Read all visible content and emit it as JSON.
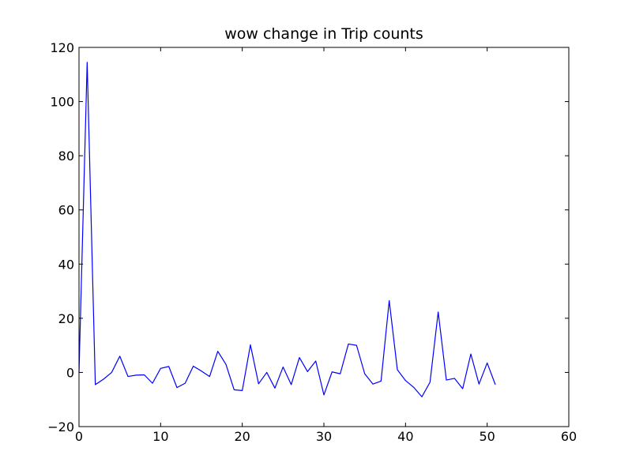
{
  "chart_data": {
    "type": "line",
    "title": "wow change in Trip counts",
    "xlabel": "",
    "ylabel": "",
    "xlim": [
      0,
      60
    ],
    "ylim": [
      -20,
      120
    ],
    "xticks": [
      0,
      10,
      20,
      30,
      40,
      50,
      60
    ],
    "yticks": [
      -20,
      0,
      20,
      40,
      60,
      80,
      100,
      120
    ],
    "grid": false,
    "series": [
      {
        "color": "#0000ff",
        "x": [
          0,
          1,
          2,
          3,
          4,
          5,
          6,
          7,
          8,
          9,
          10,
          11,
          12,
          13,
          14,
          15,
          16,
          17,
          18,
          19,
          20,
          21,
          22,
          23,
          24,
          25,
          26,
          27,
          28,
          29,
          30,
          31,
          32,
          33,
          34,
          35,
          36,
          37,
          38,
          39,
          40,
          41,
          42,
          43,
          44,
          45,
          46,
          47,
          48,
          49,
          50,
          51
        ],
        "y": [
          0,
          114.5,
          -4.5,
          -2.5,
          0,
          6,
          -1.5,
          -1,
          -0.9,
          -4,
          1.5,
          2.2,
          -5.6,
          -4,
          2.3,
          0.5,
          -1.5,
          7.8,
          3,
          -6.4,
          -6.7,
          10.2,
          -4.2,
          0,
          -5.8,
          2,
          -4.5,
          5.5,
          0.3,
          4.2,
          -8.3,
          0.2,
          -0.5,
          10.5,
          10,
          -0.5,
          -4.3,
          -3.2,
          26.5,
          1,
          -3,
          -5.5,
          -9,
          -3.6,
          22.3,
          -2.8,
          -2.2,
          -6,
          6.8,
          -4.3,
          3.5,
          -4.5
        ]
      }
    ]
  }
}
